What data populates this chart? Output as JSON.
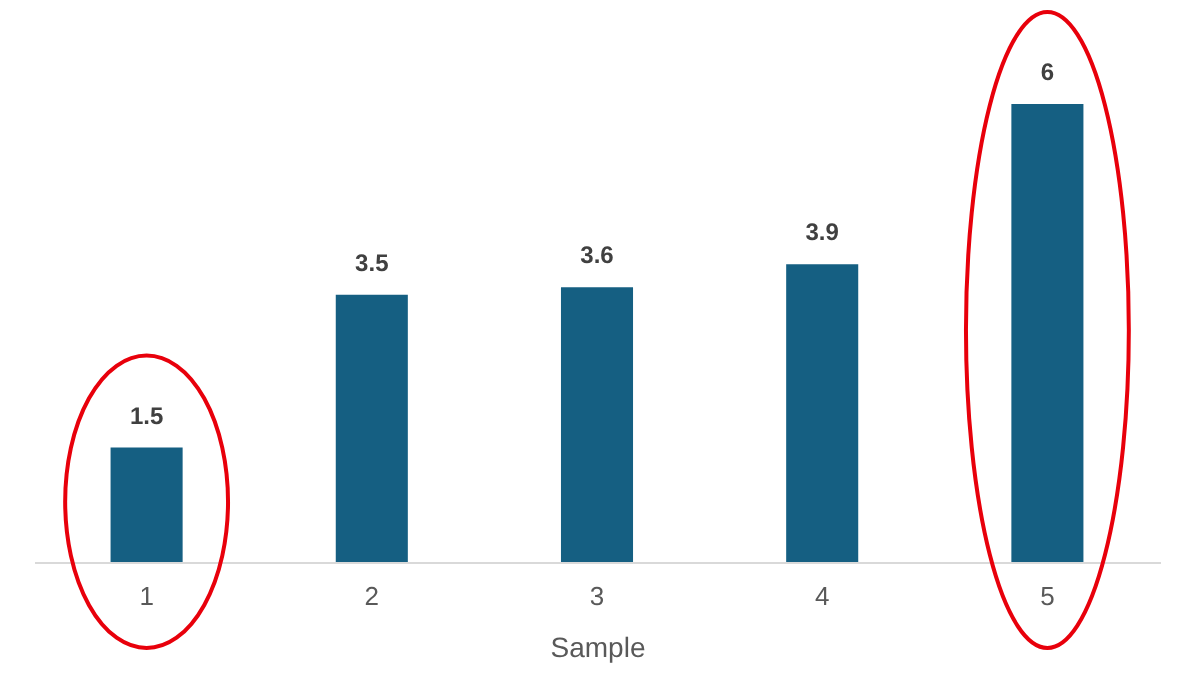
{
  "chart_data": {
    "type": "bar",
    "xlabel": "Sample",
    "categories": [
      "1",
      "2",
      "3",
      "4",
      "5"
    ],
    "values": [
      1.5,
      3.5,
      3.6,
      3.9,
      6
    ],
    "color": "#155f82",
    "data_labels": true
  }
}
